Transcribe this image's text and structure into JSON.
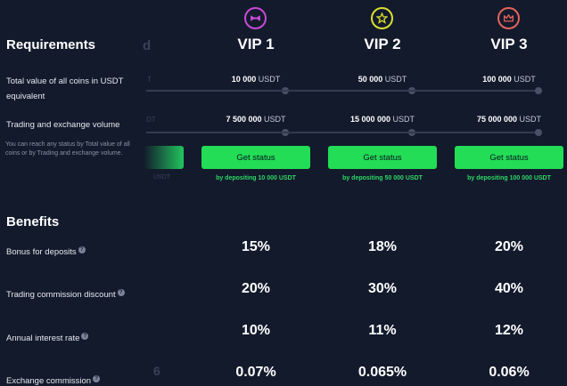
{
  "requirements": {
    "title": "Requirements",
    "ghost_header": "d",
    "rows": [
      {
        "label": "Total value of all coins in USDT equivalent",
        "ghost": "T"
      },
      {
        "label": "Trading and exchange volume",
        "ghost": "DT"
      }
    ],
    "note": "You can reach any status by Total value of all coins or by Trading and exchange volume.",
    "ghost_deposit": "USDT"
  },
  "benefits": {
    "title": "Benefits",
    "help_glyph": "?",
    "rows": [
      {
        "label": "Bonus for deposits"
      },
      {
        "label": "Trading commission discount"
      },
      {
        "label": "Annual interest rate"
      },
      {
        "label": "Exchange commission",
        "ghost": "6"
      }
    ]
  },
  "vips": [
    {
      "title": "VIP 1",
      "icon": "bowtie-icon",
      "color": "#c64bd7",
      "total_value": "10 000",
      "volume": "7 500 000",
      "unit": "USDT",
      "button": "Get status",
      "deposit_note": "by depositing 10 000 USDT",
      "benefits": [
        "15%",
        "20%",
        "10%",
        "0.07%"
      ]
    },
    {
      "title": "VIP 2",
      "icon": "star-icon",
      "color": "#d9e02f",
      "total_value": "50 000",
      "volume": "15 000 000",
      "unit": "USDT",
      "button": "Get status",
      "deposit_note": "by depositing 50 000 USDT",
      "benefits": [
        "18%",
        "30%",
        "11%",
        "0.065%"
      ]
    },
    {
      "title": "VIP 3",
      "icon": "crown-icon",
      "color": "#e5645b",
      "total_value": "100 000",
      "volume": "75 000 000",
      "unit": "USDT",
      "button": "Get status",
      "deposit_note": "by depositing 100 000 USDT",
      "benefits": [
        "20%",
        "40%",
        "12%",
        "0.06%"
      ]
    }
  ]
}
